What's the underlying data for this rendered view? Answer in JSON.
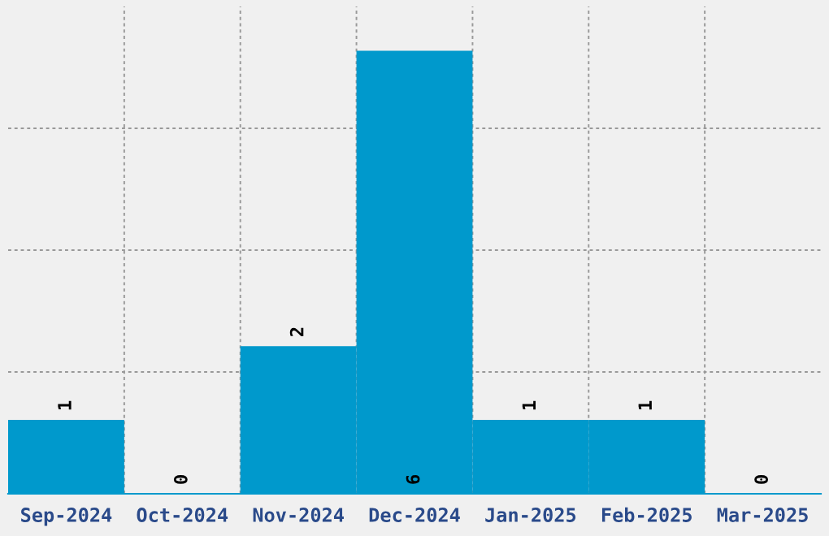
{
  "chart_data": {
    "type": "bar",
    "categories": [
      "Sep-2024",
      "Oct-2024",
      "Nov-2024",
      "Dec-2024",
      "Jan-2025",
      "Feb-2025",
      "Mar-2025"
    ],
    "values": [
      1,
      0,
      2,
      6,
      1,
      1,
      0
    ],
    "color": "#0099cc",
    "ylim": [
      0,
      6.6
    ],
    "yticks": [
      {
        "value": 1.65,
        "label": null
      },
      {
        "value": 3.3,
        "label": null
      },
      {
        "value": 4.95,
        "label": null
      }
    ],
    "tick_labels": "x",
    "data_labels": true,
    "grid": true
  }
}
